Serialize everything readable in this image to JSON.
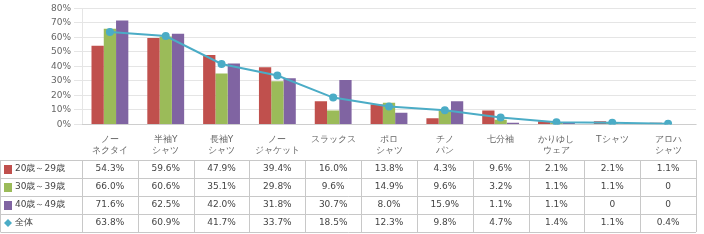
{
  "chart_data": {
    "type": "bar",
    "categories": [
      "ノー\nネクタイ",
      "半袖Y\nシャツ",
      "長袖Y\nシャツ",
      "ノー\nジャケット",
      "スラックス",
      "ポロ\nシャツ",
      "チノ\nパン",
      "七分袖",
      "かりゆし\nウェア",
      "Tシャツ",
      "アロハ\nシャツ"
    ],
    "series": [
      {
        "name": "20歳～29歳",
        "color": "#c0504d",
        "values": [
          54.3,
          59.6,
          47.9,
          39.4,
          16.0,
          13.8,
          4.3,
          9.6,
          2.1,
          2.1,
          1.1
        ],
        "value_labels": [
          "54.3%",
          "59.6%",
          "47.9%",
          "39.4%",
          "16.0%",
          "13.8%",
          "4.3%",
          "9.6%",
          "2.1%",
          "2.1%",
          "1.1%"
        ]
      },
      {
        "name": "30歳～39歳",
        "color": "#9bbb59",
        "values": [
          66.0,
          60.6,
          35.1,
          29.8,
          9.6,
          14.9,
          9.6,
          3.2,
          1.1,
          1.1,
          0
        ],
        "value_labels": [
          "66.0%",
          "60.6%",
          "35.1%",
          "29.8%",
          "9.6%",
          "14.9%",
          "9.6%",
          "3.2%",
          "1.1%",
          "1.1%",
          "0"
        ]
      },
      {
        "name": "40歳～49歳",
        "color": "#8064a2",
        "values": [
          71.6,
          62.5,
          42.0,
          31.8,
          30.7,
          8.0,
          15.9,
          1.1,
          1.1,
          0,
          0
        ],
        "value_labels": [
          "71.6%",
          "62.5%",
          "42.0%",
          "31.8%",
          "30.7%",
          "8.0%",
          "15.9%",
          "1.1%",
          "1.1%",
          "0",
          "0"
        ]
      },
      {
        "name": "全体",
        "type": "line",
        "marker": "circle",
        "color": "#4bacc6",
        "values": [
          63.8,
          60.9,
          41.7,
          33.7,
          18.5,
          12.3,
          9.8,
          4.7,
          1.4,
          1.1,
          0.4
        ],
        "value_labels": [
          "63.8%",
          "60.9%",
          "41.7%",
          "33.7%",
          "18.5%",
          "12.3%",
          "9.8%",
          "4.7%",
          "1.4%",
          "1.1%",
          "0.4%"
        ]
      }
    ],
    "ylim": [
      0,
      80
    ],
    "yticks": [
      {
        "value": 0,
        "label": "0%"
      },
      {
        "value": 10,
        "label": "10%"
      },
      {
        "value": 20,
        "label": "20%"
      },
      {
        "value": 30,
        "label": "30%"
      },
      {
        "value": 40,
        "label": "40%"
      },
      {
        "value": 50,
        "label": "50%"
      },
      {
        "value": 60,
        "label": "60%"
      },
      {
        "value": 70,
        "label": "70%"
      },
      {
        "value": 80,
        "label": "80%"
      }
    ],
    "grid": true
  }
}
